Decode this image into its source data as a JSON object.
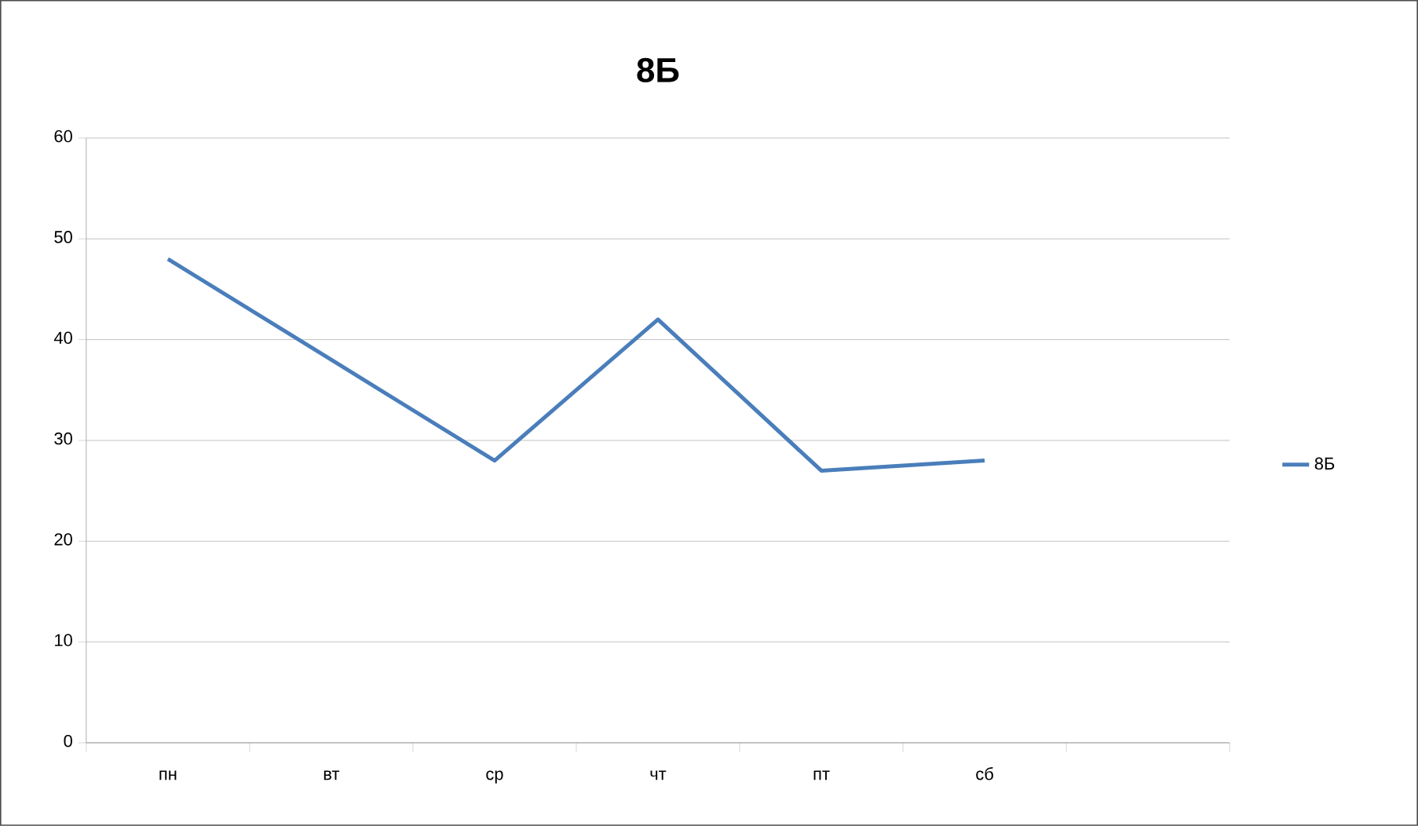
{
  "chart_data": {
    "type": "line",
    "title": "8Б",
    "categories": [
      "пн",
      "вт",
      "ср",
      "чт",
      "пт",
      "сб",
      null
    ],
    "series": [
      {
        "name": "8Б",
        "color": "#4a7ebb",
        "values": [
          48,
          38,
          28,
          42,
          27,
          28,
          null
        ]
      }
    ],
    "ylim": [
      0,
      60
    ],
    "yticks": [
      0,
      10,
      20,
      30,
      40,
      50,
      60
    ],
    "grid": "y",
    "legend": "right",
    "marker": "none",
    "line_style": "solid"
  }
}
